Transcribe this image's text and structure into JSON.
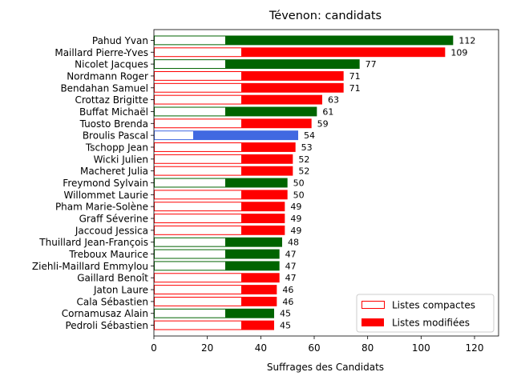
{
  "chart_data": {
    "type": "bar",
    "orientation": "horizontal",
    "title": "Tévenon: candidats",
    "xlabel": "Suffrages des Candidats",
    "ylabel": "",
    "xlim": [
      0,
      129
    ],
    "xticks": [
      0,
      20,
      40,
      60,
      80,
      100,
      120
    ],
    "grid": false,
    "legend": {
      "placement": "bottom-right",
      "entries": [
        {
          "label": "Listes compactes",
          "style": "outline",
          "color": "#ff0000"
        },
        {
          "label": "Listes modifiées",
          "style": "filled",
          "color": "#ff0000"
        }
      ]
    },
    "colors": {
      "green": "#006400",
      "red": "#ff0000",
      "blue": "#4169e1"
    },
    "categories": [
      "Pahud Yvan",
      "Maillard Pierre-Yves",
      "Nicolet Jacques",
      "Nordmann Roger",
      "Bendahan Samuel",
      "Crottaz Brigitte",
      "Buffat Michaël",
      "Tuosto Brenda",
      "Broulis Pascal",
      "Tschopp Jean",
      "Wicki Julien",
      "Macheret Julia",
      "Freymond Sylvain",
      "Willommet Laurie",
      "Pham Marie-Solène",
      "Graff Séverine",
      "Jaccoud Jessica",
      "Thuillard Jean-François",
      "Treboux Maurice",
      "Ziehli-Maillard Emmylou",
      "Gaillard Benoît",
      "Jaton Laure",
      "Cala Sébastien",
      "Cornamusaz Alain",
      "Pedroli Sébastien"
    ],
    "series": [
      {
        "name": "Listes compactes",
        "values": [
          27,
          33,
          27,
          33,
          33,
          33,
          27,
          33,
          15,
          33,
          33,
          33,
          27,
          33,
          33,
          33,
          33,
          27,
          27,
          27,
          33,
          33,
          33,
          27,
          33
        ]
      },
      {
        "name": "Listes modifiées",
        "values": [
          85,
          76,
          50,
          38,
          38,
          30,
          34,
          26,
          39,
          20,
          19,
          19,
          23,
          17,
          16,
          16,
          16,
          21,
          20,
          20,
          14,
          13,
          13,
          18,
          12
        ]
      }
    ],
    "totals": [
      112,
      109,
      77,
      71,
      71,
      63,
      61,
      59,
      54,
      53,
      52,
      52,
      50,
      50,
      49,
      49,
      49,
      48,
      47,
      47,
      47,
      46,
      46,
      45,
      45
    ],
    "bar_colors": [
      "green",
      "red",
      "green",
      "red",
      "red",
      "red",
      "green",
      "red",
      "blue",
      "red",
      "red",
      "red",
      "green",
      "red",
      "red",
      "red",
      "red",
      "green",
      "green",
      "green",
      "red",
      "red",
      "red",
      "green",
      "red"
    ]
  }
}
